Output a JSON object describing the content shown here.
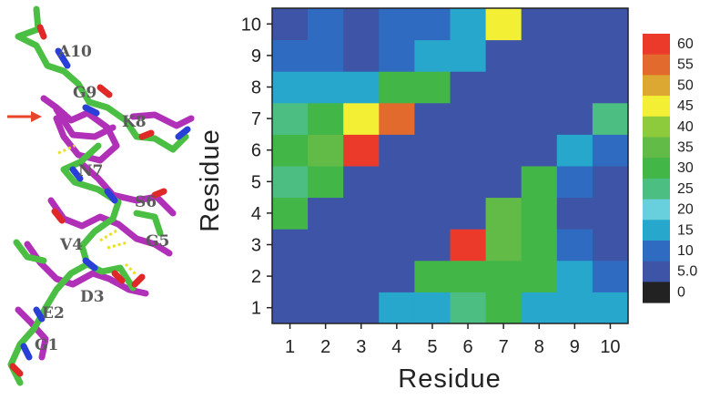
{
  "structure": {
    "residue_labels": [
      "A10",
      "G9",
      "K8",
      "N7",
      "S6",
      "G5",
      "V4",
      "D3",
      "E2",
      "G1"
    ],
    "arrow_color": "#e8452a",
    "colors": {
      "carbon_green": "#4bbf44",
      "carbon_magenta": "#b030b8",
      "nitrogen": "#2840d8",
      "oxygen": "#e02828",
      "hbond": "#e8e020"
    }
  },
  "chart_data": {
    "type": "heatmap",
    "title": "",
    "xlabel": "Residue",
    "ylabel": "Residue",
    "x_ticks": [
      "1",
      "2",
      "3",
      "4",
      "5",
      "6",
      "7",
      "8",
      "9",
      "10"
    ],
    "y_ticks": [
      "1",
      "2",
      "3",
      "4",
      "5",
      "6",
      "7",
      "8",
      "9",
      "10"
    ],
    "values": [
      [
        5,
        5,
        5,
        17,
        13,
        24,
        30,
        17,
        17,
        17
      ],
      [
        5,
        5,
        5,
        5,
        31,
        31,
        31,
        31,
        13,
        9
      ],
      [
        5,
        5,
        5,
        5,
        5,
        60,
        35,
        31,
        9,
        5
      ],
      [
        31,
        5,
        5,
        5,
        5,
        5,
        35,
        31,
        5,
        5
      ],
      [
        24,
        31,
        5,
        5,
        5,
        5,
        5,
        31,
        9,
        5
      ],
      [
        31,
        33,
        60,
        5,
        5,
        5,
        5,
        5,
        13,
        9
      ],
      [
        24,
        31,
        45,
        54,
        5,
        5,
        5,
        5,
        5,
        24
      ],
      [
        13,
        17,
        17,
        31,
        31,
        5,
        5,
        5,
        5,
        5
      ],
      [
        9,
        9,
        5,
        9,
        13,
        13,
        5,
        5,
        5,
        5
      ],
      [
        5,
        9,
        5,
        9,
        9,
        17,
        45,
        5,
        5,
        5
      ]
    ],
    "value_note": "values[row][col], row index 0 = Residue 1 (bottom)",
    "colorbar": {
      "ticks": [
        "60",
        "55",
        "50",
        "45",
        "40",
        "35",
        "30",
        "25",
        "20",
        "15",
        "10",
        "5.0",
        "0"
      ],
      "colors": [
        "#ec3a2a",
        "#e26a2c",
        "#dda832",
        "#f2ef34",
        "#8dcb3c",
        "#62bb46",
        "#43b648",
        "#4cbe82",
        "#67d0dc",
        "#27a7cc",
        "#2f6cc1",
        "#3e55a7",
        "#222222"
      ]
    }
  }
}
